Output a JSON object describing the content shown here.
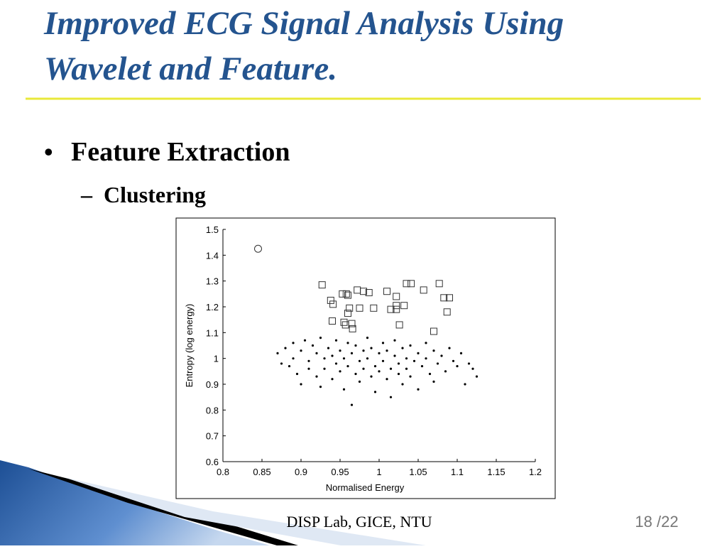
{
  "title_lines": [
    "Improved ECG Signal Analysis Using",
    "Wavelet and Feature."
  ],
  "bullet": "Feature Extraction",
  "sub_bullet": "Clustering",
  "footer": "DISP Lab, GICE, NTU",
  "page_number": "18 /22",
  "chart_data": {
    "type": "scatter",
    "x_label": "Normalised Energy",
    "y_label": "Entropy (log energy)",
    "xlim": [
      0.8,
      1.2
    ],
    "xticks": [
      0.8,
      0.85,
      0.9,
      0.95,
      1,
      1.05,
      1.1,
      1.15,
      1.2
    ],
    "ylim": [
      0.6,
      1.5
    ],
    "yticks": [
      0.6,
      0.7,
      0.8,
      0.9,
      1,
      1.1,
      1.2,
      1.3,
      1.4,
      1.5
    ],
    "series": [
      {
        "marker": "circle",
        "color": "#333333",
        "x": [
          0.845
        ],
        "y": [
          1.425
        ]
      },
      {
        "marker": "square",
        "color": "#333333",
        "x": [
          0.927,
          0.938,
          0.941,
          0.94,
          0.953,
          0.958,
          0.96,
          0.96,
          0.962,
          0.955,
          0.957,
          0.965,
          0.966,
          0.972,
          0.975,
          0.98,
          0.987,
          0.993,
          1.01,
          1.015,
          1.022,
          1.022,
          1.022,
          1.026,
          1.032,
          1.035,
          1.041,
          1.057,
          1.07,
          1.077,
          1.083,
          1.09,
          1.087
        ],
        "y": [
          1.285,
          1.225,
          1.21,
          1.145,
          1.25,
          1.25,
          1.245,
          1.175,
          1.195,
          1.14,
          1.13,
          1.135,
          1.115,
          1.265,
          1.195,
          1.26,
          1.255,
          1.195,
          1.26,
          1.19,
          1.24,
          1.205,
          1.19,
          1.13,
          1.205,
          1.29,
          1.29,
          1.265,
          1.105,
          1.29,
          1.235,
          1.235,
          1.18
        ]
      },
      {
        "marker": "dot",
        "color": "#000000",
        "x": [
          0.87,
          0.875,
          0.88,
          0.885,
          0.89,
          0.89,
          0.895,
          0.9,
          0.9,
          0.905,
          0.91,
          0.91,
          0.915,
          0.92,
          0.92,
          0.925,
          0.925,
          0.93,
          0.93,
          0.935,
          0.94,
          0.94,
          0.945,
          0.945,
          0.95,
          0.95,
          0.955,
          0.955,
          0.96,
          0.96,
          0.965,
          0.965,
          0.97,
          0.97,
          0.975,
          0.975,
          0.98,
          0.98,
          0.985,
          0.985,
          0.99,
          0.99,
          0.995,
          0.995,
          1.0,
          1.0,
          1.005,
          1.005,
          1.01,
          1.01,
          1.015,
          1.015,
          1.02,
          1.02,
          1.025,
          1.025,
          1.03,
          1.03,
          1.035,
          1.035,
          1.04,
          1.04,
          1.045,
          1.05,
          1.05,
          1.055,
          1.06,
          1.06,
          1.065,
          1.07,
          1.07,
          1.075,
          1.08,
          1.085,
          1.09,
          1.095,
          1.1,
          1.105,
          1.11,
          1.115,
          1.12,
          1.125
        ],
        "y": [
          1.02,
          0.98,
          1.04,
          0.97,
          1.06,
          1.0,
          0.94,
          1.03,
          0.9,
          1.07,
          0.99,
          0.96,
          1.05,
          0.93,
          1.02,
          0.89,
          1.08,
          1.0,
          0.96,
          1.04,
          0.92,
          1.01,
          0.98,
          1.07,
          0.95,
          1.03,
          0.88,
          1.0,
          1.06,
          0.97,
          0.82,
          1.02,
          0.94,
          1.05,
          0.99,
          0.91,
          1.03,
          0.96,
          1.08,
          1.0,
          0.93,
          1.04,
          0.97,
          0.87,
          1.02,
          0.95,
          1.06,
          0.99,
          0.92,
          1.03,
          0.96,
          0.85,
          1.01,
          1.07,
          0.94,
          0.98,
          1.04,
          0.9,
          1.0,
          0.96,
          1.05,
          0.93,
          0.99,
          1.02,
          0.88,
          0.97,
          1.06,
          1.0,
          0.94,
          1.03,
          0.91,
          0.98,
          1.01,
          0.95,
          1.04,
          0.99,
          0.97,
          1.02,
          0.9,
          0.98,
          0.96,
          0.93
        ]
      }
    ]
  }
}
